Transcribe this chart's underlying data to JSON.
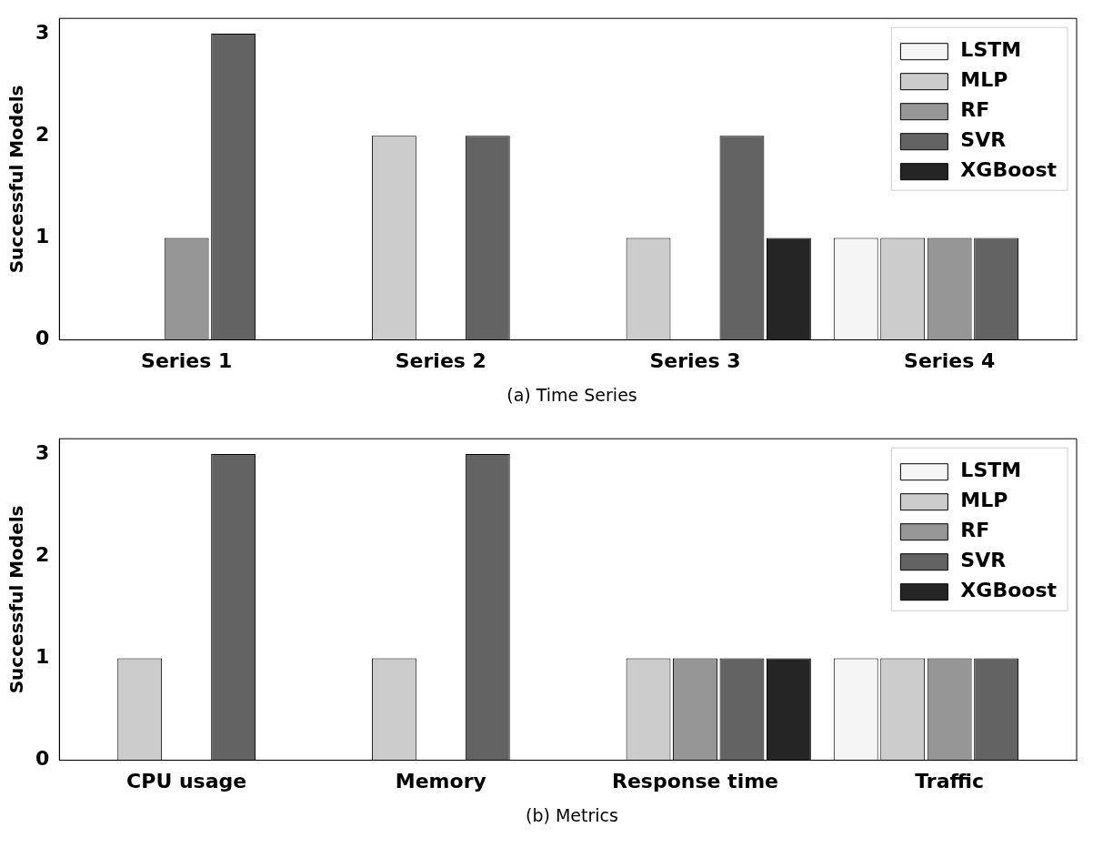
{
  "chart_data": [
    {
      "type": "bar",
      "ylabel": "Successful Models",
      "categories": [
        "Series 1",
        "Series 2",
        "Series 3",
        "Series 4"
      ],
      "ylim": [
        0,
        3.15
      ],
      "yticks": [
        0,
        1,
        2,
        3
      ],
      "grid": false,
      "legend": "top right",
      "annotations": [
        "(a) Time Series"
      ],
      "series": [
        {
          "name": "LSTM",
          "color": "#f5f5f5",
          "values": [
            0,
            0,
            0,
            1
          ]
        },
        {
          "name": "MLP",
          "color": "#cccccc",
          "values": [
            0,
            2,
            1,
            1
          ]
        },
        {
          "name": "RF",
          "color": "#969696",
          "values": [
            1,
            0,
            0,
            1
          ]
        },
        {
          "name": "SVR",
          "color": "#636363",
          "values": [
            3,
            2,
            2,
            1
          ]
        },
        {
          "name": "XGBoost",
          "color": "#252525",
          "values": [
            0,
            0,
            1,
            0
          ]
        }
      ]
    },
    {
      "type": "bar",
      "ylabel": "Successful Models",
      "categories": [
        "CPU usage",
        "Memory",
        "Response time",
        "Traffic"
      ],
      "ylim": [
        0,
        3.15
      ],
      "yticks": [
        0,
        1,
        2,
        3
      ],
      "grid": false,
      "legend": "top right",
      "annotations": [
        "(b) Metrics"
      ],
      "series": [
        {
          "name": "LSTM",
          "color": "#f5f5f5",
          "values": [
            0,
            0,
            0,
            1
          ]
        },
        {
          "name": "MLP",
          "color": "#cccccc",
          "values": [
            1,
            1,
            1,
            1
          ]
        },
        {
          "name": "RF",
          "color": "#969696",
          "values": [
            0,
            0,
            1,
            1
          ]
        },
        {
          "name": "SVR",
          "color": "#636363",
          "values": [
            3,
            3,
            1,
            1
          ]
        },
        {
          "name": "XGBoost",
          "color": "#252525",
          "values": [
            0,
            0,
            1,
            0
          ]
        }
      ]
    }
  ]
}
